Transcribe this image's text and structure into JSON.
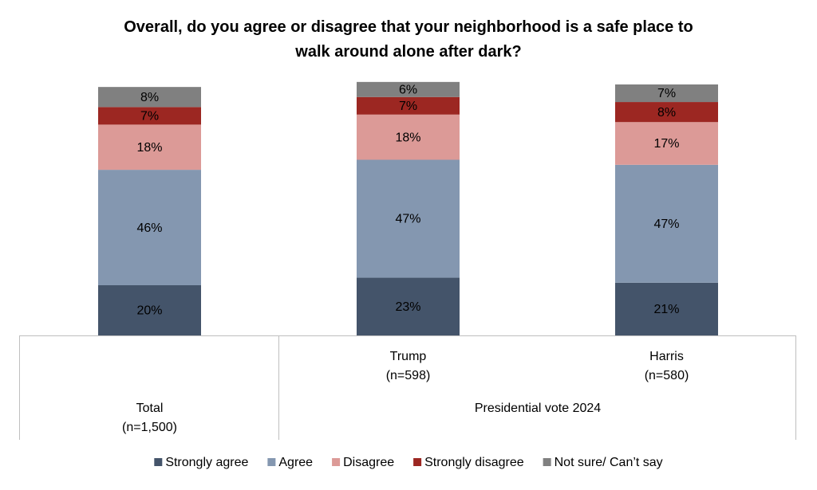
{
  "chart_data": {
    "type": "stacked_bar",
    "title": "Overall, do you agree or disagree that your neighborhood is a safe place to walk around alone after dark?",
    "categories": [
      "Total",
      "Trump",
      "Harris"
    ],
    "category_notes": [
      "(n=1,500)",
      "(n=598)",
      "(n=580)"
    ],
    "group_label": "Presidential vote 2024",
    "ylim": [
      0,
      100
    ],
    "series": [
      {
        "name": "Strongly agree",
        "color": "#44546a",
        "label_color": "#ffffff",
        "values": [
          20,
          23,
          21
        ],
        "value_labels": [
          "20%",
          "23%",
          "21%"
        ]
      },
      {
        "name": "Agree",
        "color": "#8497b0",
        "label_color": "#ffffff",
        "values": [
          46,
          47,
          47
        ],
        "value_labels": [
          "46%",
          "47%",
          "47%"
        ]
      },
      {
        "name": "Disagree",
        "color": "#dc9a97",
        "label_color": "#000000",
        "values": [
          18,
          18,
          17
        ],
        "value_labels": [
          "18%",
          "18%",
          "17%"
        ]
      },
      {
        "name": "Strongly disagree",
        "color": "#9c2722",
        "label_color": "#ffffff",
        "values": [
          7,
          7,
          8
        ],
        "value_labels": [
          "7%",
          "7%",
          "8%"
        ]
      },
      {
        "name": "Not sure/ Can’t say",
        "color": "#808080",
        "label_color": "#ffffff",
        "values": [
          8,
          6,
          7
        ],
        "value_labels": [
          "8%",
          "6%",
          "7%"
        ]
      }
    ]
  }
}
